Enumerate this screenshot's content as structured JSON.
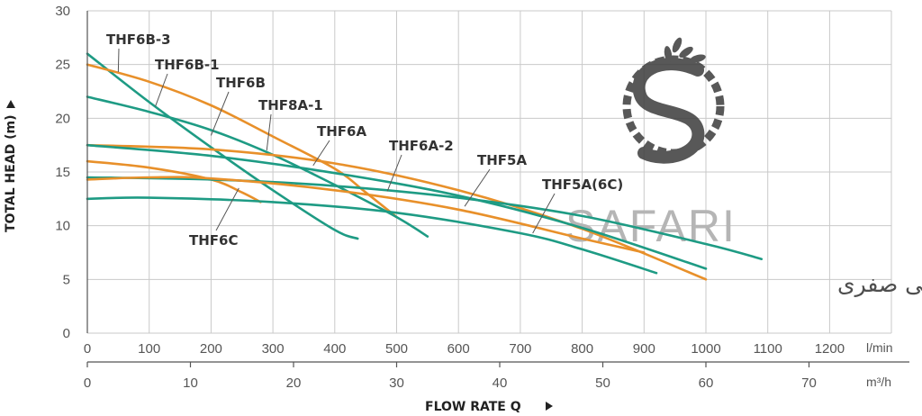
{
  "chart_data": {
    "type": "line",
    "xlabel": "FLOW RATE Q",
    "ylabel": "TOTAL HEAD (m)",
    "x_unit_primary": "l/min",
    "x_unit_secondary": "m³/h",
    "xlim": [
      0,
      1300
    ],
    "ylim": [
      0,
      30
    ],
    "x_ticks": [
      0,
      100,
      200,
      300,
      400,
      500,
      600,
      700,
      800,
      900,
      1000,
      1100,
      1200
    ],
    "x2_ticks": [
      0,
      10,
      20,
      30,
      40,
      50,
      60,
      70
    ],
    "y_ticks": [
      0,
      5,
      10,
      15,
      20,
      25,
      30
    ],
    "grid": true,
    "series": [
      {
        "name": "THF6B-3",
        "color": "#1e9b84",
        "x": [
          0,
          100,
          200,
          300,
          400,
          437
        ],
        "y": [
          26,
          21.5,
          17.3,
          13.3,
          9.6,
          8.8
        ]
      },
      {
        "name": "THF6B-1",
        "color": "#e8902a",
        "x": [
          0,
          100,
          200,
          300,
          400,
          450,
          500
        ],
        "y": [
          25,
          23.4,
          21.2,
          18.3,
          15.3,
          13.1,
          10.8
        ]
      },
      {
        "name": "THF6B",
        "color": "#1e9b84",
        "x": [
          0,
          100,
          200,
          300,
          400,
          500,
          550
        ],
        "y": [
          22,
          20.6,
          18.9,
          16.6,
          13.8,
          10.8,
          9.0
        ]
      },
      {
        "name": "THF8A-1",
        "color": "#e8902a",
        "x": [
          0,
          200,
          400,
          600,
          800,
          1000
        ],
        "y": [
          17.5,
          17.1,
          15.8,
          13.3,
          9.7,
          5.0
        ]
      },
      {
        "name": "THF6A",
        "color": "#1e9b84",
        "x": [
          0,
          200,
          400,
          600,
          800,
          1000
        ],
        "y": [
          17.5,
          16.5,
          14.9,
          12.8,
          9.8,
          6.0
        ]
      },
      {
        "name": "THF6A-2",
        "color": "#e8902a",
        "x": [
          0,
          100,
          200,
          250,
          280
        ],
        "y": [
          16,
          15.4,
          14.3,
          13.1,
          12.2
        ]
      },
      {
        "name": "THF5A",
        "color": "#1e9b84",
        "x": [
          0,
          200,
          400,
          600,
          800,
          1000,
          1090
        ],
        "y": [
          14.5,
          14.3,
          13.7,
          12.6,
          10.9,
          8.3,
          6.9
        ]
      },
      {
        "name": "THF5A(6C)",
        "color": "#e8902a",
        "x": [
          0,
          100,
          200,
          400,
          600,
          800,
          900
        ],
        "y": [
          14.3,
          14.5,
          14.4,
          13.3,
          11.5,
          8.8,
          7.5
        ]
      },
      {
        "name": "THF6C",
        "color": "#1e9b84",
        "x": [
          0,
          100,
          300,
          500,
          700,
          800,
          920
        ],
        "y": [
          12.5,
          12.6,
          12.2,
          11.2,
          9.3,
          7.8,
          5.6
        ]
      }
    ],
    "annotations": [
      {
        "text": "THF6B-3",
        "target": [
          50,
          24.3
        ]
      },
      {
        "text": "THF6B-1",
        "target": [
          110,
          21.1
        ]
      },
      {
        "text": "THF6B",
        "target": [
          200,
          18.4
        ]
      },
      {
        "text": "THF8A-1",
        "target": [
          290,
          17.0
        ]
      },
      {
        "text": "THF6A",
        "target": [
          365,
          15.6
        ]
      },
      {
        "text": "THF6A-2",
        "target": [
          485,
          13.2
        ]
      },
      {
        "text": "THF5A",
        "target": [
          610,
          11.8
        ]
      },
      {
        "text": "THF5A(6C)",
        "target": [
          720,
          9.3
        ]
      },
      {
        "text": "THF6C",
        "target": [
          245,
          13.5
        ]
      }
    ]
  },
  "watermark": {
    "brand": "SAFARI",
    "subtitle": "تجهیزات کشاورزی و باغبانی صفری"
  }
}
